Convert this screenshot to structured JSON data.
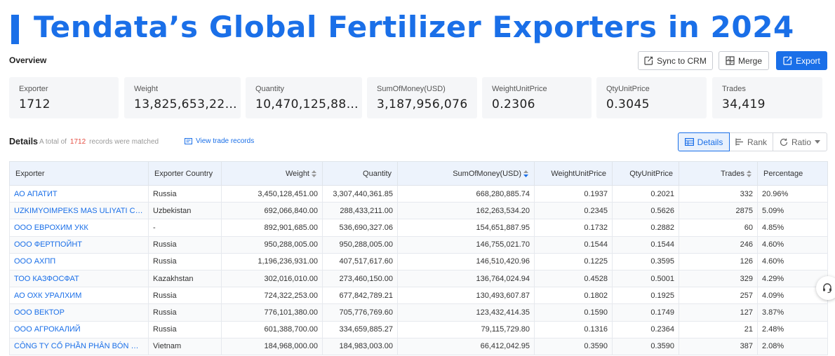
{
  "page": {
    "title": "Tendata’s Global Fertilizer Exporters in 2024"
  },
  "overview": {
    "label": "Overview"
  },
  "toolbar": {
    "sync_label": "Sync to CRM",
    "merge_label": "Merge",
    "export_label": "Export"
  },
  "stats": [
    {
      "label": "Exporter",
      "value": "1712"
    },
    {
      "label": "Weight",
      "value": "13,825,653,227...."
    },
    {
      "label": "Quantity",
      "value": "10,470,125,887...."
    },
    {
      "label": "SumOfMoney(USD)",
      "value": "3,187,956,076"
    },
    {
      "label": "WeightUnitPrice",
      "value": "0.2306"
    },
    {
      "label": "QtyUnitPrice",
      "value": "0.3045"
    },
    {
      "label": "Trades",
      "value": "34,419"
    }
  ],
  "details": {
    "label": "Details",
    "total_prefix": "A total of",
    "total_count": "1712",
    "total_suffix": "records were matched",
    "view_link": "View trade records",
    "views": {
      "details": "Details",
      "rank": "Rank",
      "ratio": "Ratio"
    }
  },
  "table": {
    "columns": {
      "exporter": "Exporter",
      "country": "Exporter Country",
      "weight": "Weight",
      "quantity": "Quantity",
      "sum": "SumOfMoney(USD)",
      "wup": "WeightUnitPrice",
      "qup": "QtyUnitPrice",
      "trades": "Trades",
      "pct": "Percentage"
    },
    "rows": [
      {
        "exporter": "АО АПАТИТ",
        "country": "Russia",
        "weight": "3,450,128,451.00",
        "quantity": "3,307,440,361.85",
        "sum": "668,280,885.74",
        "wup": "0.1937",
        "qup": "0.2021",
        "trades": "332",
        "pct": "20.96%"
      },
      {
        "exporter": "UZKIMYOIMPEKS MAS ULIYATI CHEKLANGAN JAMIYATI",
        "country": "Uzbekistan",
        "weight": "692,066,840.00",
        "quantity": "288,433,211.00",
        "sum": "162,263,534.20",
        "wup": "0.2345",
        "qup": "0.5626",
        "trades": "2875",
        "pct": "5.09%"
      },
      {
        "exporter": "ООО ЕВРОХИМ УКК",
        "country": "-",
        "weight": "892,901,685.00",
        "quantity": "536,690,327.06",
        "sum": "154,651,887.95",
        "wup": "0.1732",
        "qup": "0.2882",
        "trades": "60",
        "pct": "4.85%"
      },
      {
        "exporter": "ООО ФЕРТПОЙНТ",
        "country": "Russia",
        "weight": "950,288,005.00",
        "quantity": "950,288,005.00",
        "sum": "146,755,021.70",
        "wup": "0.1544",
        "qup": "0.1544",
        "trades": "246",
        "pct": "4.60%"
      },
      {
        "exporter": "ООО АХПП",
        "country": "Russia",
        "weight": "1,196,236,931.00",
        "quantity": "407,517,617.60",
        "sum": "146,510,420.96",
        "wup": "0.1225",
        "qup": "0.3595",
        "trades": "126",
        "pct": "4.60%"
      },
      {
        "exporter": "ТОО КАЗФОСФАТ",
        "country": "Kazakhstan",
        "weight": "302,016,010.00",
        "quantity": "273,460,150.00",
        "sum": "136,764,024.94",
        "wup": "0.4528",
        "qup": "0.5001",
        "trades": "329",
        "pct": "4.29%"
      },
      {
        "exporter": "АО ОХК УРАЛХИМ",
        "country": "Russia",
        "weight": "724,322,253.00",
        "quantity": "677,842,789.21",
        "sum": "130,493,607.87",
        "wup": "0.1802",
        "qup": "0.1925",
        "trades": "257",
        "pct": "4.09%"
      },
      {
        "exporter": "ООО ВЕКТОР",
        "country": "Russia",
        "weight": "776,101,380.00",
        "quantity": "705,776,769.60",
        "sum": "123,432,414.35",
        "wup": "0.1590",
        "qup": "0.1749",
        "trades": "127",
        "pct": "3.87%"
      },
      {
        "exporter": "ООО АГРОКАЛИЙ",
        "country": "Russia",
        "weight": "601,388,700.00",
        "quantity": "334,659,885.27",
        "sum": "79,115,729.80",
        "wup": "0.1316",
        "qup": "0.2364",
        "trades": "21",
        "pct": "2.48%"
      },
      {
        "exporter": "CÔNG TY CỔ PHẦN PHÂN BÓN DẦU KHÍ",
        "country": "Vietnam",
        "weight": "184,968,000.00",
        "quantity": "184,983,003.00",
        "sum": "66,412,042.95",
        "wup": "0.3590",
        "qup": "0.3590",
        "trades": "387",
        "pct": "2.08%"
      }
    ]
  },
  "colors": {
    "accent": "#1a6fe8",
    "count_red": "#e54d42",
    "header_bg": "#edf3fc",
    "card_bg": "#f5f6f8"
  },
  "icons": {
    "sync": "external-edit-icon",
    "merge": "merge-grid-icon",
    "export": "export-icon",
    "view": "list-icon",
    "details": "table-icon",
    "rank": "bar-rank-icon",
    "ratio": "refresh-icon",
    "sort": "sort-arrows-icon",
    "support": "headset-icon"
  }
}
